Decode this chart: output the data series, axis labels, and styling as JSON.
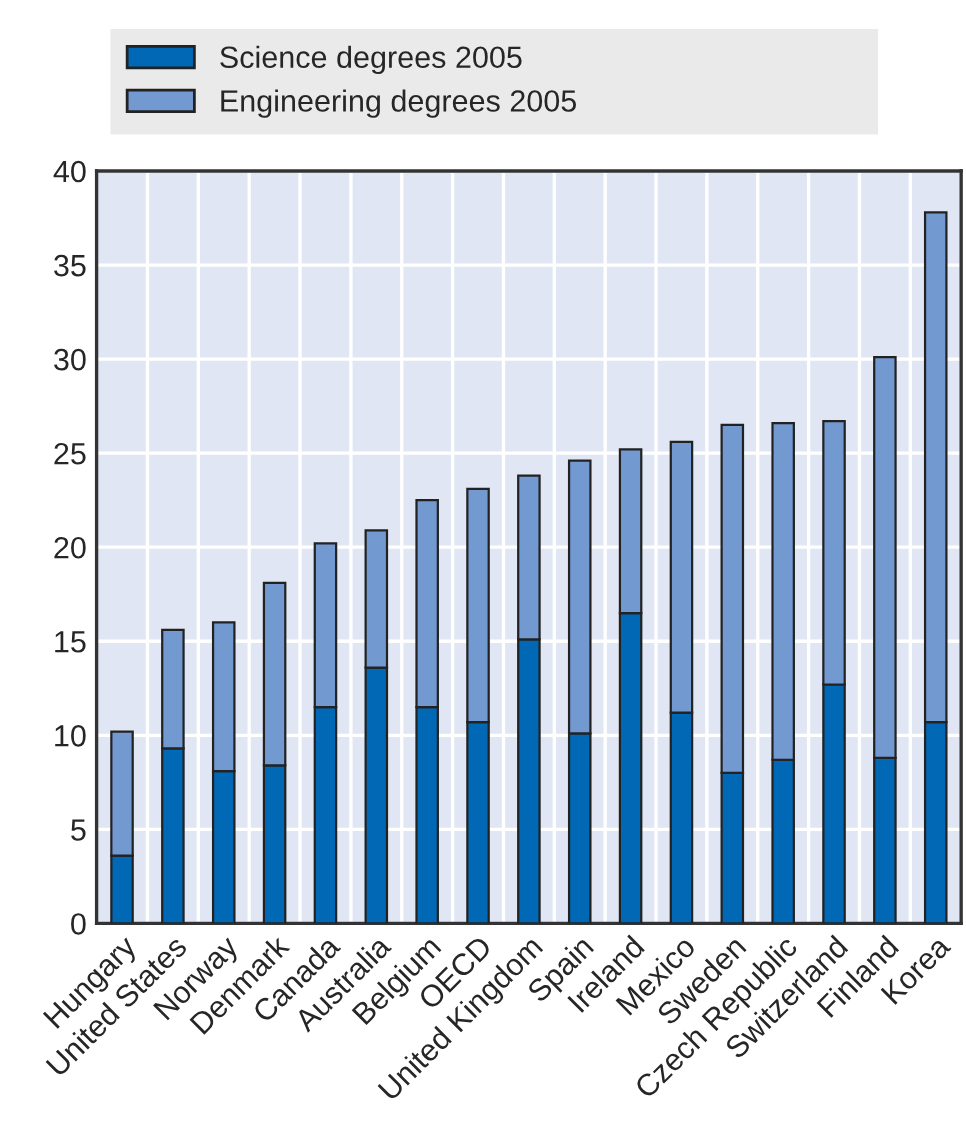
{
  "chart_data": {
    "type": "bar",
    "stacked": true,
    "categories": [
      "Hungary",
      "United States",
      "Norway",
      "Denmark",
      "Canada",
      "Australia",
      "Belgium",
      "OECD",
      "United Kingdom",
      "Spain",
      "Ireland",
      "Mexico",
      "Sweden",
      "Czech Republic",
      "Switzerland",
      "Finland",
      "Korea"
    ],
    "series": [
      {
        "name": "Science degrees 2005",
        "color": "#0068b4",
        "values": [
          3.6,
          9.3,
          8.1,
          8.4,
          11.5,
          13.6,
          11.5,
          10.7,
          15.1,
          10.1,
          16.5,
          11.2,
          8.0,
          8.7,
          12.7,
          8.8,
          10.7
        ]
      },
      {
        "name": "Engineering degrees 2005",
        "color": "#7399d1",
        "values": [
          6.6,
          6.3,
          7.9,
          9.7,
          8.7,
          7.3,
          11.0,
          12.4,
          8.7,
          14.5,
          8.7,
          14.4,
          18.5,
          17.9,
          14.0,
          21.3,
          27.1
        ]
      }
    ],
    "ylim": [
      0,
      40
    ],
    "yticks": [
      0,
      5,
      10,
      15,
      20,
      25,
      30,
      35,
      40
    ],
    "grid": true,
    "legend": "top"
  }
}
